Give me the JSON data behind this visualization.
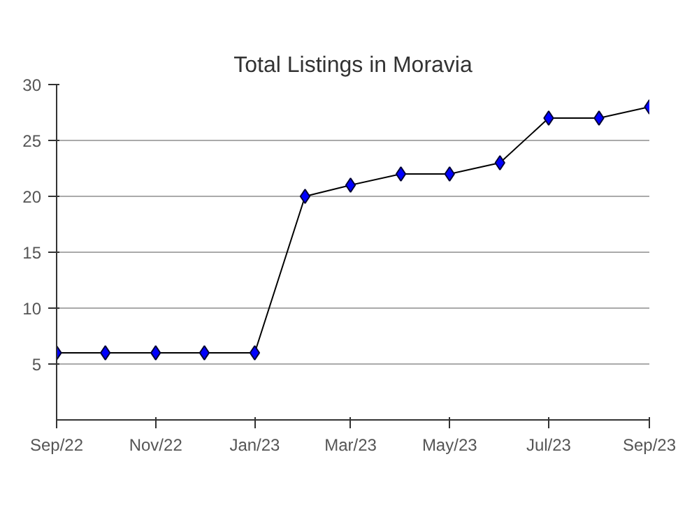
{
  "chart_data": {
    "type": "line",
    "title": "Total Listings in Moravia",
    "x": [
      "2022-09",
      "2022-10",
      "2022-11",
      "2022-12",
      "2023-01",
      "2023-02",
      "2023-03",
      "2023-04",
      "2023-05",
      "2023-06",
      "2023-07",
      "2023-08",
      "2023-09"
    ],
    "series": [
      {
        "color": "#0000ff",
        "values": [
          6,
          6,
          6,
          6,
          6,
          20,
          21,
          22,
          22,
          23,
          27,
          27,
          28
        ]
      }
    ],
    "xlim": [
      "2022-09",
      "2023-09"
    ],
    "xticks": [
      {
        "value": "2022-09",
        "label": "Sep/22"
      },
      {
        "value": "2022-11",
        "label": "Nov/22"
      },
      {
        "value": "2023-01",
        "label": "Jan/23"
      },
      {
        "value": "2023-03",
        "label": "Mar/23"
      },
      {
        "value": "2023-05",
        "label": "May/23"
      },
      {
        "value": "2023-07",
        "label": "Jul/23"
      },
      {
        "value": "2023-09",
        "label": "Sep/23"
      }
    ],
    "ylim": [
      0,
      30
    ],
    "yticks": [
      5,
      10,
      15,
      20,
      25,
      30
    ],
    "grid": "y",
    "marker": "diamond",
    "line_style": "solid"
  }
}
